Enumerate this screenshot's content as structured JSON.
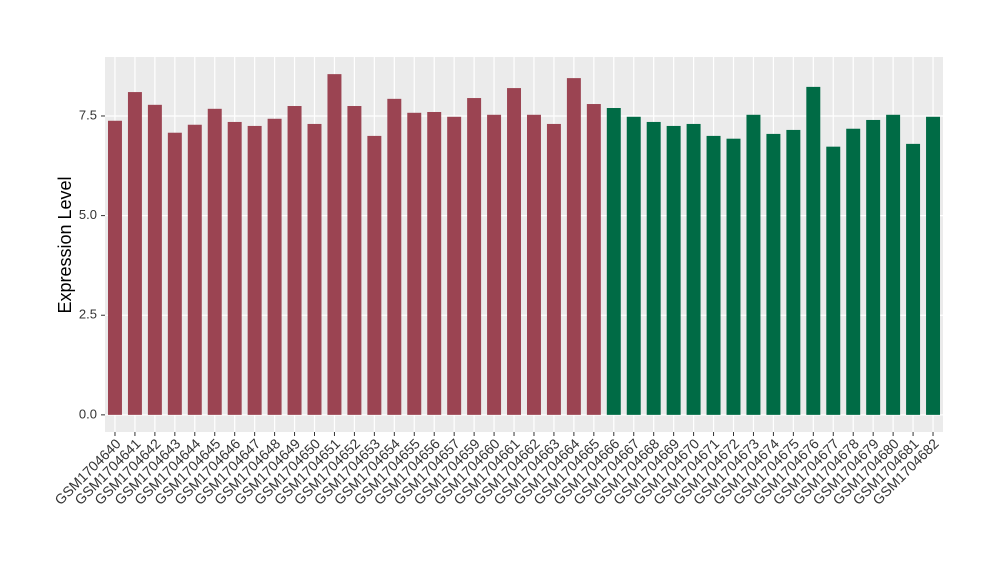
{
  "chart_data": {
    "type": "bar",
    "y_label": "Expression Level",
    "categories": [
      "GSM1704640",
      "GSM1704641",
      "GSM1704642",
      "GSM1704643",
      "GSM1704644",
      "GSM1704645",
      "GSM1704646",
      "GSM1704647",
      "GSM1704648",
      "GSM1704649",
      "GSM1704650",
      "GSM1704651",
      "GSM1704652",
      "GSM1704653",
      "GSM1704654",
      "GSM1704655",
      "GSM1704656",
      "GSM1704657",
      "GSM1704659",
      "GSM1704660",
      "GSM1704661",
      "GSM1704662",
      "GSM1704663",
      "GSM1704664",
      "GSM1704665",
      "GSM1704666",
      "GSM1704667",
      "GSM1704668",
      "GSM1704669",
      "GSM1704670",
      "GSM1704671",
      "GSM1704672",
      "GSM1704673",
      "GSM1704674",
      "GSM1704675",
      "GSM1704676",
      "GSM1704677",
      "GSM1704678",
      "GSM1704679",
      "GSM1704680",
      "GSM1704681",
      "GSM1704682"
    ],
    "values": [
      7.38,
      8.1,
      7.78,
      7.08,
      7.28,
      7.68,
      7.35,
      7.25,
      7.43,
      7.75,
      7.3,
      8.55,
      7.75,
      7.0,
      7.93,
      7.58,
      7.6,
      7.48,
      7.95,
      7.53,
      8.2,
      7.53,
      7.3,
      8.45,
      7.8,
      7.7,
      7.48,
      7.35,
      7.25,
      7.3,
      7.0,
      6.93,
      7.53,
      7.05,
      7.15,
      8.23,
      6.73,
      7.18,
      7.4,
      7.53,
      6.8,
      7.48
    ],
    "colors": [
      "#9b4452",
      "#9b4452",
      "#9b4452",
      "#9b4452",
      "#9b4452",
      "#9b4452",
      "#9b4452",
      "#9b4452",
      "#9b4452",
      "#9b4452",
      "#9b4452",
      "#9b4452",
      "#9b4452",
      "#9b4452",
      "#9b4452",
      "#9b4452",
      "#9b4452",
      "#9b4452",
      "#9b4452",
      "#9b4452",
      "#9b4452",
      "#9b4452",
      "#9b4452",
      "#9b4452",
      "#9b4452",
      "#006b45",
      "#006b45",
      "#006b45",
      "#006b45",
      "#006b45",
      "#006b45",
      "#006b45",
      "#006b45",
      "#006b45",
      "#006b45",
      "#006b45",
      "#006b45",
      "#006b45",
      "#006b45",
      "#006b45",
      "#006b45",
      "#006b45"
    ],
    "ylim": [
      -0.43,
      8.98
    ],
    "yticks": [
      {
        "value": 0,
        "label": "0.0"
      },
      2.5,
      {
        "value": 5,
        "label": "5.0"
      },
      7.5
    ],
    "grid": true
  }
}
